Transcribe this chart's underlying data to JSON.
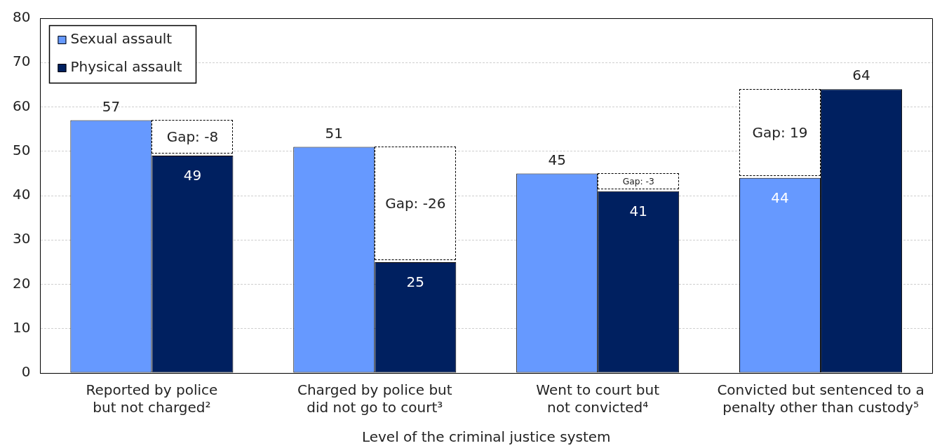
{
  "chart_data": {
    "type": "bar",
    "xlabel": "Level of the criminal justice system",
    "categories": [
      "Reported by police but not charged²",
      "Charged by police but did not go to court³",
      "Went to court but not convicted⁴",
      "Convicted but sentenced to a penalty other than custody⁵"
    ],
    "series": [
      {
        "name": "Sexual assault",
        "color": "#6699ff",
        "values": [
          57,
          51,
          45,
          44
        ]
      },
      {
        "name": "Physical assault",
        "color": "#002060",
        "values": [
          49,
          25,
          41,
          64
        ]
      }
    ],
    "ylim": [
      0,
      80
    ],
    "yticks": [
      0,
      10,
      20,
      30,
      40,
      50,
      60,
      70,
      80
    ],
    "grid": "y",
    "legend": "top left",
    "data_labels": true,
    "annotations": [
      "Gap: -8",
      "Gap: -26",
      "Gap: -3",
      "Gap: 19"
    ]
  }
}
